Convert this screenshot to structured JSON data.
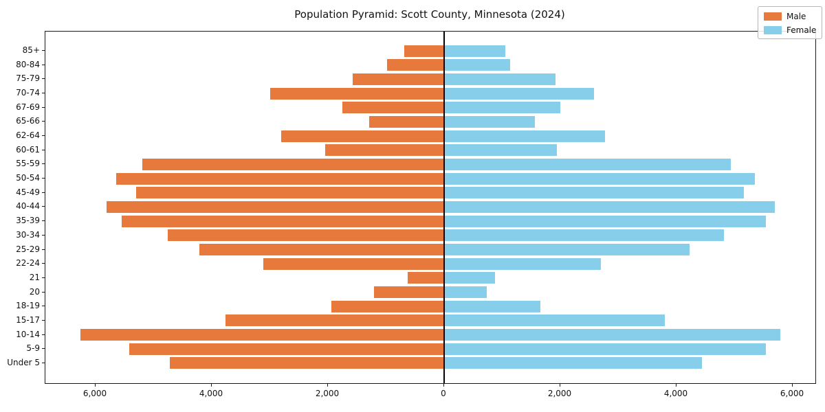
{
  "title": "Population Pyramid: Scott County, Minnesota (2024)",
  "legend": {
    "male_label": "Male",
    "female_label": "Female",
    "position": "upper right"
  },
  "colors": {
    "male": "#E8793D",
    "female": "#87CEEB",
    "axis": "#1a1a1a",
    "center_line": "#000000",
    "legend_border": "#b5b5b5"
  },
  "chart_data": {
    "type": "bar",
    "subtype": "population-pyramid",
    "orientation": "horizontal",
    "title": "Population Pyramid: Scott County, Minnesota (2024)",
    "xlabel": "",
    "ylabel": "",
    "grid": false,
    "legend_position": "upper right",
    "categories_top_to_bottom": [
      "85+",
      "80-84",
      "75-79",
      "70-74",
      "67-69",
      "65-66",
      "62-64",
      "60-61",
      "55-59",
      "50-54",
      "45-49",
      "40-44",
      "35-39",
      "30-34",
      "25-29",
      "22-24",
      "21",
      "20",
      "18-19",
      "15-17",
      "10-14",
      "5-9",
      "Under 5"
    ],
    "series": [
      {
        "name": "Male",
        "side": "left",
        "color": "#E8793D",
        "values": [
          690,
          980,
          1570,
          3000,
          1750,
          1290,
          2800,
          2050,
          5200,
          5650,
          5300,
          5810,
          5550,
          4760,
          4210,
          3110,
          630,
          1210,
          1940,
          3760,
          6260,
          5420,
          4720
        ]
      },
      {
        "name": "Female",
        "side": "right",
        "color": "#87CEEB",
        "values": [
          1050,
          1140,
          1920,
          2580,
          2000,
          1560,
          2770,
          1940,
          4930,
          5350,
          5160,
          5690,
          5540,
          4820,
          4220,
          2700,
          880,
          730,
          1660,
          3800,
          5790,
          5540,
          4440
        ]
      }
    ],
    "x_ticks": {
      "values": [
        -6000,
        -4000,
        -2000,
        0,
        2000,
        4000,
        6000
      ],
      "labels": [
        "6,000",
        "4,000",
        "2,000",
        "0",
        "2,000",
        "4,000",
        "6,000"
      ]
    },
    "xlim": [
      -6864,
      6390
    ]
  }
}
